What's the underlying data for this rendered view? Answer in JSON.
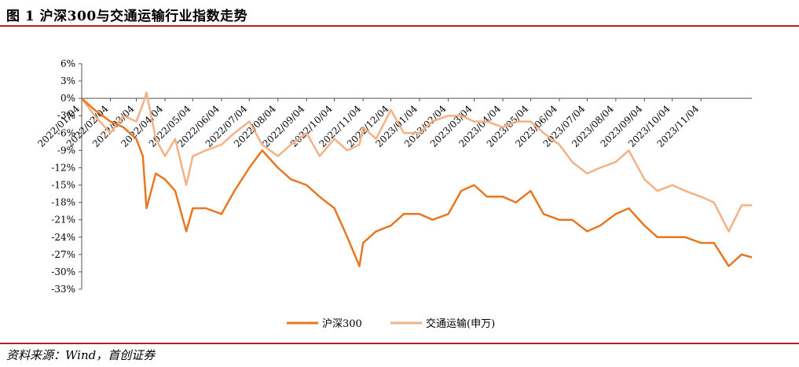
{
  "figure": {
    "title": "图 1 沪深300与交通运输行业指数走势",
    "source": "资料来源：Wind，首创证券"
  },
  "colors": {
    "rule": "#b22222",
    "hs300": "#e87722",
    "transport": "#f4b183"
  },
  "chart_data": {
    "type": "line",
    "title": "",
    "xlabel": "",
    "ylabel": "",
    "ylim": [
      -33,
      6
    ],
    "yticks": [
      6,
      3,
      0,
      -3,
      -6,
      -9,
      -12,
      -15,
      -18,
      -21,
      -24,
      -27,
      -30,
      -33
    ],
    "ytick_labels": [
      "6%",
      "3%",
      "0%",
      "-3%",
      "-6%",
      "-9%",
      "-12%",
      "-15%",
      "-18%",
      "-21%",
      "-24%",
      "-27%",
      "-30%",
      "-33%"
    ],
    "x_start": "2022/01/04",
    "x_end": "2023/12/29",
    "xtick_labels": [
      "2022/01/04",
      "2022/02/04",
      "2022/03/04",
      "2022/04/04",
      "2022/05/04",
      "2022/06/04",
      "2022/07/04",
      "2022/08/04",
      "2022/09/04",
      "2022/10/04",
      "2022/11/04",
      "2022/12/04",
      "2023/01/04",
      "2023/02/04",
      "2023/03/04",
      "2023/04/04",
      "2023/05/04",
      "2023/06/04",
      "2023/07/04",
      "2023/08/04",
      "2023/09/04",
      "2023/10/04",
      "2023/11/04"
    ],
    "legend_position": "bottom",
    "grid": false,
    "x": [
      "2022/01/04",
      "2022/01/18",
      "2022/02/04",
      "2022/02/18",
      "2022/03/04",
      "2022/03/11",
      "2022/03/15",
      "2022/03/25",
      "2022/04/04",
      "2022/04/15",
      "2022/04/27",
      "2022/05/04",
      "2022/05/18",
      "2022/06/04",
      "2022/06/18",
      "2022/07/04",
      "2022/07/18",
      "2022/08/04",
      "2022/08/18",
      "2022/09/04",
      "2022/09/18",
      "2022/10/04",
      "2022/10/18",
      "2022/10/31",
      "2022/11/04",
      "2022/11/18",
      "2022/12/04",
      "2022/12/18",
      "2023/01/04",
      "2023/01/18",
      "2023/02/04",
      "2023/02/18",
      "2023/03/04",
      "2023/03/18",
      "2023/04/04",
      "2023/04/18",
      "2023/05/04",
      "2023/05/18",
      "2023/06/04",
      "2023/06/18",
      "2023/07/04",
      "2023/07/18",
      "2023/08/04",
      "2023/08/18",
      "2023/09/04",
      "2023/09/18",
      "2023/10/04",
      "2023/10/18",
      "2023/11/04",
      "2023/11/18",
      "2023/12/04",
      "2023/12/18",
      "2023/12/29"
    ],
    "series": [
      {
        "name": "沪深300",
        "color": "#e87722",
        "values": [
          0,
          -2,
          -4,
          -5,
          -7,
          -10,
          -19,
          -13,
          -14,
          -16,
          -23,
          -19,
          -19,
          -20,
          -16,
          -12,
          -9,
          -12,
          -14,
          -15,
          -17,
          -19,
          -24,
          -29,
          -25,
          -23,
          -22,
          -20,
          -20,
          -21,
          -20,
          -16,
          -15,
          -17,
          -17,
          -18,
          -16,
          -20,
          -21,
          -21,
          -23,
          -22,
          -20,
          -19,
          -22,
          -24,
          -24,
          -24,
          -25,
          -25,
          -29,
          -27,
          -27.5
        ]
      },
      {
        "name": "交通运输(申万)",
        "color": "#f4b183",
        "values": [
          0,
          -3,
          -6,
          -3,
          -4,
          -1,
          1,
          -7,
          -10,
          -7,
          -15,
          -10,
          -9,
          -8,
          -6,
          -4,
          -8,
          -10,
          -8,
          -6,
          -10,
          -7,
          -9,
          -8,
          -5,
          -7,
          -2,
          -6,
          -6,
          -4,
          -3,
          -3,
          -4,
          -4,
          -5,
          -4,
          -4,
          -6,
          -8,
          -11,
          -13,
          -12,
          -11,
          -9,
          -14,
          -16,
          -15,
          -16,
          -17,
          -18,
          -23,
          -18.5,
          -18.5
        ]
      }
    ]
  },
  "legend": {
    "items": [
      "沪深300",
      "交通运输(申万)"
    ]
  }
}
